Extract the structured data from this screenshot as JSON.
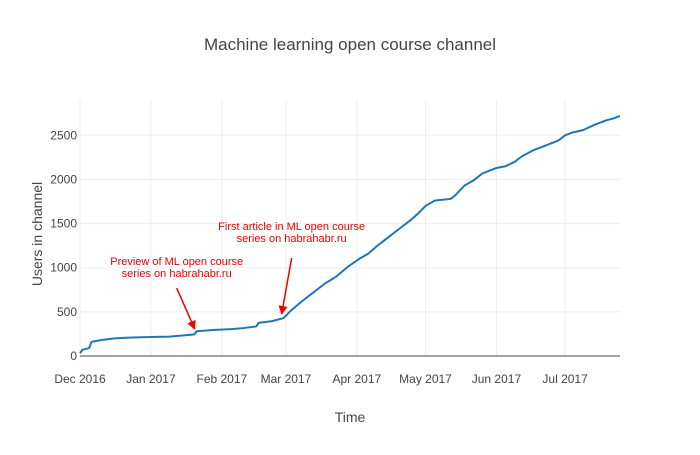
{
  "chart_data": {
    "type": "line",
    "title": "Machine learning open course channel",
    "xlabel": "Time",
    "ylabel": "Users in channel",
    "x_range": [
      "2016-12-01",
      "2017-07-25"
    ],
    "ylim": [
      0,
      2900
    ],
    "grid": true,
    "legend": "none",
    "x_ticks": [
      {
        "date": "2016-12-01",
        "label": "Dec 2016"
      },
      {
        "date": "2017-01-01",
        "label": "Jan 2017"
      },
      {
        "date": "2017-02-01",
        "label": "Feb 2017"
      },
      {
        "date": "2017-03-01",
        "label": "Mar 2017"
      },
      {
        "date": "2017-04-01",
        "label": "Apr 2017"
      },
      {
        "date": "2017-05-01",
        "label": "May 2017"
      },
      {
        "date": "2017-06-01",
        "label": "Jun 2017"
      },
      {
        "date": "2017-07-01",
        "label": "Jul 2017"
      }
    ],
    "y_ticks": [
      {
        "value": 0,
        "label": "0"
      },
      {
        "value": 500,
        "label": "500"
      },
      {
        "value": 1000,
        "label": "1000"
      },
      {
        "value": 1500,
        "label": "1500"
      },
      {
        "value": 2000,
        "label": "2000"
      },
      {
        "value": 2500,
        "label": "2500"
      }
    ],
    "series": [
      {
        "color": "#1f77b4",
        "points": [
          [
            "2016-12-01",
            30
          ],
          [
            "2016-12-02",
            70
          ],
          [
            "2016-12-05",
            90
          ],
          [
            "2016-12-06",
            160
          ],
          [
            "2016-12-10",
            180
          ],
          [
            "2016-12-16",
            200
          ],
          [
            "2016-12-24",
            210
          ],
          [
            "2017-01-01",
            215
          ],
          [
            "2017-01-09",
            220
          ],
          [
            "2017-01-16",
            235
          ],
          [
            "2017-01-20",
            245
          ],
          [
            "2017-01-21",
            280
          ],
          [
            "2017-01-28",
            295
          ],
          [
            "2017-02-05",
            305
          ],
          [
            "2017-02-10",
            315
          ],
          [
            "2017-02-16",
            335
          ],
          [
            "2017-02-17",
            375
          ],
          [
            "2017-02-23",
            395
          ],
          [
            "2017-02-28",
            430
          ],
          [
            "2017-03-03",
            510
          ],
          [
            "2017-03-08",
            620
          ],
          [
            "2017-03-13",
            720
          ],
          [
            "2017-03-18",
            820
          ],
          [
            "2017-03-23",
            900
          ],
          [
            "2017-03-28",
            1010
          ],
          [
            "2017-04-02",
            1100
          ],
          [
            "2017-04-06",
            1160
          ],
          [
            "2017-04-10",
            1250
          ],
          [
            "2017-04-15",
            1350
          ],
          [
            "2017-04-20",
            1450
          ],
          [
            "2017-04-25",
            1550
          ],
          [
            "2017-04-28",
            1620
          ],
          [
            "2017-05-01",
            1700
          ],
          [
            "2017-05-05",
            1760
          ],
          [
            "2017-05-12",
            1780
          ],
          [
            "2017-05-14",
            1820
          ],
          [
            "2017-05-18",
            1930
          ],
          [
            "2017-05-22",
            1990
          ],
          [
            "2017-05-26",
            2070
          ],
          [
            "2017-06-01",
            2130
          ],
          [
            "2017-06-05",
            2150
          ],
          [
            "2017-06-09",
            2200
          ],
          [
            "2017-06-12",
            2260
          ],
          [
            "2017-06-17",
            2330
          ],
          [
            "2017-06-23",
            2390
          ],
          [
            "2017-06-28",
            2440
          ],
          [
            "2017-07-01",
            2500
          ],
          [
            "2017-07-04",
            2530
          ],
          [
            "2017-07-09",
            2560
          ],
          [
            "2017-07-14",
            2620
          ],
          [
            "2017-07-19",
            2670
          ],
          [
            "2017-07-22",
            2690
          ],
          [
            "2017-07-25",
            2720
          ]
        ]
      }
    ],
    "annotations": [
      {
        "text": "Preview of ML open course\nseries on habrahabr.ru",
        "x": "2017-01-21",
        "y": 260,
        "color": "#ee0000"
      },
      {
        "text": "First article in ML open course\nseries on habrahabr.ru",
        "x": "2017-02-28",
        "y": 430,
        "color": "#ee0000"
      }
    ]
  }
}
